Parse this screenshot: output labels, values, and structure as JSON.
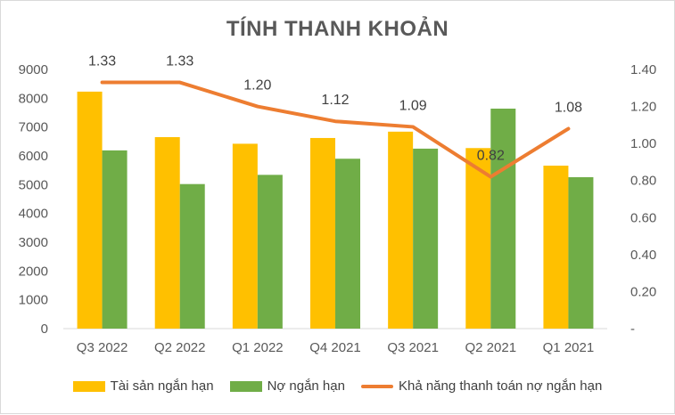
{
  "chart_data": {
    "type": "bar",
    "title": "TÍNH THANH KHOẢN",
    "categories": [
      "Q3 2022",
      "Q2 2022",
      "Q1 2022",
      "Q4 2021",
      "Q3 2021",
      "Q2 2021",
      "Q1 2021"
    ],
    "series": [
      {
        "name": "Tài sản ngắn hạn",
        "type": "bar",
        "axis": "left",
        "color": "#ffc000",
        "values": [
          8230,
          6650,
          6420,
          6620,
          6840,
          6270,
          5660
        ]
      },
      {
        "name": "Nợ ngắn hạn",
        "type": "bar",
        "axis": "left",
        "color": "#70ad47",
        "values": [
          6190,
          5020,
          5340,
          5900,
          6250,
          7640,
          5260
        ]
      },
      {
        "name": "Khả năng thanh toán nợ ngắn hạn",
        "type": "line",
        "axis": "right",
        "color": "#ed7d31",
        "values": [
          1.33,
          1.33,
          1.2,
          1.12,
          1.09,
          0.82,
          1.08
        ],
        "labels": [
          "1.33",
          "1.33",
          "1.20",
          "1.12",
          "1.09",
          "0.82",
          "1.08"
        ]
      }
    ],
    "y_left": {
      "ylim": [
        0,
        9000
      ],
      "ticks": [
        "0",
        "1000",
        "2000",
        "3000",
        "4000",
        "5000",
        "6000",
        "7000",
        "8000",
        "9000"
      ]
    },
    "y_right": {
      "ylim": [
        0,
        1.4
      ],
      "ticks": [
        "-",
        "0.20",
        "0.40",
        "0.60",
        "0.80",
        "1.00",
        "1.20",
        "1.40"
      ]
    },
    "grid": false,
    "legend_position": "bottom"
  }
}
